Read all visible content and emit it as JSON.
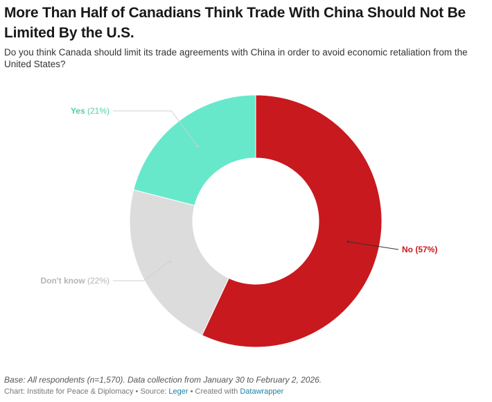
{
  "header": {
    "title": "More Than Half of Canadians Think Trade With China Should Not Be Limited By the U.S.",
    "subtitle": "Do you think Canada should limit its trade agreements with China in order to avoid economic retaliation from the United States?"
  },
  "chart_data": {
    "type": "pie",
    "variant": "donut",
    "title": "More Than Half of Canadians Think Trade With China Should Not Be Limited By the U.S.",
    "subtitle": "Do you think Canada should limit its trade agreements with China in order to avoid economic retaliation from the United States?",
    "slices": [
      {
        "label": "No",
        "value": 57,
        "value_label": "(57%)",
        "color": "#c8191e",
        "label_color": "#c8191e"
      },
      {
        "label": "Don't know",
        "value": 22,
        "value_label": "(22%)",
        "color": "#dcdcdc",
        "label_color": "#b4b4b4"
      },
      {
        "label": "Yes",
        "value": 21,
        "value_label": "(21%)",
        "color": "#67e8cb",
        "label_color": "#4fcfae"
      }
    ],
    "legend": "none"
  },
  "footer": {
    "note": "Base: All respondents (n=1,570). Data collection from January 30 to February 2, 2026.",
    "chart_prefix": "Chart: ",
    "chart_org": "Institute for Peace & Diplomacy",
    "separator": " • ",
    "source_prefix": "Source: ",
    "source_name": "Leger",
    "created_prefix": "Created with ",
    "created_tool": "Datawrapper"
  }
}
